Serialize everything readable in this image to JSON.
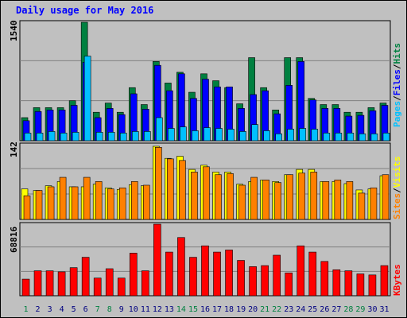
{
  "title": "Daily usage for May 2016",
  "colors": {
    "background": "#c0c0c0",
    "hits": "#008040",
    "files": "#0000ff",
    "pages": "#00c0ff",
    "visits": "#ffff00",
    "sites": "#ff8000",
    "kbytes": "#ff0000",
    "weekend_day": "#008040",
    "weekday": "#000080"
  },
  "chart_data": [
    {
      "type": "bar",
      "title": "Hits / Files / Pages",
      "ymax_label": "1540",
      "ylim": [
        0,
        1540
      ],
      "legend": [
        "Pages",
        "Files",
        "Hits"
      ],
      "categories": [
        "1",
        "2",
        "3",
        "4",
        "5",
        "6",
        "7",
        "8",
        "9",
        "10",
        "11",
        "12",
        "13",
        "14",
        "15",
        "16",
        "17",
        "18",
        "19",
        "20",
        "21",
        "22",
        "23",
        "24",
        "25",
        "26",
        "27",
        "28",
        "29",
        "30",
        "31"
      ],
      "series": [
        {
          "name": "Hits",
          "values": [
            300,
            430,
            430,
            430,
            520,
            1540,
            370,
            490,
            370,
            690,
            470,
            1030,
            750,
            890,
            630,
            870,
            780,
            690,
            480,
            1080,
            690,
            400,
            1080,
            1080,
            550,
            470,
            470,
            370,
            370,
            430,
            490
          ]
        },
        {
          "name": "Files",
          "values": [
            260,
            380,
            400,
            400,
            460,
            1020,
            300,
            420,
            340,
            610,
            410,
            980,
            650,
            870,
            550,
            800,
            700,
            700,
            420,
            600,
            650,
            350,
            720,
            1030,
            530,
            420,
            420,
            320,
            330,
            390,
            460
          ]
        },
        {
          "name": "Pages",
          "values": [
            100,
            100,
            120,
            100,
            110,
            1100,
            110,
            110,
            100,
            120,
            120,
            300,
            160,
            180,
            130,
            170,
            160,
            150,
            120,
            210,
            130,
            90,
            150,
            160,
            150,
            100,
            100,
            100,
            90,
            90,
            100
          ]
        }
      ]
    },
    {
      "type": "bar",
      "title": "Visits / Sites",
      "ymax_label": "142",
      "ylim": [
        0,
        142
      ],
      "legend": [
        "Sites",
        "Visits"
      ],
      "categories": [
        "1",
        "2",
        "3",
        "4",
        "5",
        "6",
        "7",
        "8",
        "9",
        "10",
        "11",
        "12",
        "13",
        "14",
        "15",
        "16",
        "17",
        "18",
        "19",
        "20",
        "21",
        "22",
        "23",
        "24",
        "25",
        "26",
        "27",
        "28",
        "29",
        "30",
        "31"
      ],
      "series": [
        {
          "name": "Visits",
          "values": [
            58,
            55,
            64,
            72,
            62,
            62,
            67,
            60,
            57,
            66,
            64,
            139,
            116,
            120,
            95,
            103,
            90,
            90,
            67,
            72,
            75,
            72,
            85,
            95,
            95,
            72,
            72,
            68,
            56,
            58,
            83
          ]
        },
        {
          "name": "Sites",
          "values": [
            45,
            55,
            62,
            80,
            62,
            80,
            72,
            58,
            60,
            72,
            65,
            137,
            115,
            112,
            90,
            100,
            85,
            87,
            65,
            80,
            75,
            70,
            85,
            88,
            90,
            72,
            75,
            72,
            50,
            60,
            85
          ]
        }
      ]
    },
    {
      "type": "bar",
      "title": "KBytes",
      "ymax_label": "68816",
      "ylim": [
        0,
        68816
      ],
      "legend": [
        "KBytes"
      ],
      "categories": [
        "1",
        "2",
        "3",
        "4",
        "5",
        "6",
        "7",
        "8",
        "9",
        "10",
        "11",
        "12",
        "13",
        "14",
        "15",
        "16",
        "17",
        "18",
        "19",
        "20",
        "21",
        "22",
        "23",
        "24",
        "25",
        "26",
        "27",
        "28",
        "29",
        "30",
        "31"
      ],
      "series": [
        {
          "name": "KBytes",
          "values": [
            16000,
            24000,
            24000,
            23000,
            27000,
            37000,
            17000,
            26000,
            17000,
            41000,
            24000,
            68816,
            42000,
            56000,
            37000,
            48000,
            42000,
            44000,
            34000,
            28000,
            29000,
            39000,
            22000,
            48000,
            42000,
            33000,
            25000,
            24000,
            21000,
            20000,
            29000
          ]
        }
      ]
    }
  ]
}
